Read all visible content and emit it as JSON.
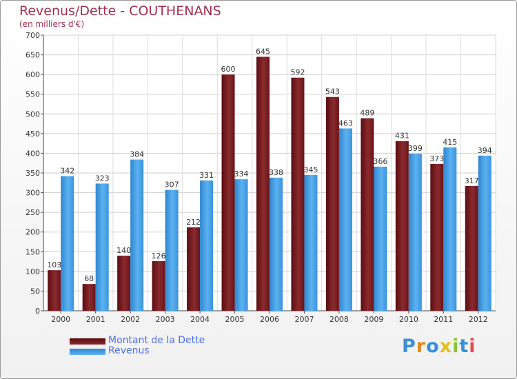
{
  "title": "Revenus/Dette - COUTHENANS",
  "subtitle": "(en milliers d'€)",
  "colors": {
    "debt": "#7a1a1e",
    "revenue": "#4aa3e6",
    "title": "#a03050",
    "legend_text": "#4f6fe0"
  },
  "logo": {
    "text": "Proxiti"
  },
  "chart_data": {
    "type": "bar",
    "categories": [
      "2000",
      "2001",
      "2002",
      "2003",
      "2004",
      "2005",
      "2006",
      "2007",
      "2008",
      "2009",
      "2010",
      "2011",
      "2012"
    ],
    "series": [
      {
        "name": "Montant de la Dette",
        "values": [
          103,
          68,
          140,
          126,
          212,
          600,
          645,
          592,
          543,
          489,
          431,
          373,
          317
        ]
      },
      {
        "name": "Revenus",
        "values": [
          342,
          323,
          384,
          307,
          331,
          334,
          338,
          345,
          463,
          366,
          399,
          415,
          394
        ]
      }
    ],
    "ylim": [
      0,
      700
    ],
    "yticks": [
      0,
      50,
      100,
      150,
      200,
      250,
      300,
      350,
      400,
      450,
      500,
      550,
      600,
      650,
      700
    ],
    "grid": true,
    "legend": "bottom-left"
  }
}
